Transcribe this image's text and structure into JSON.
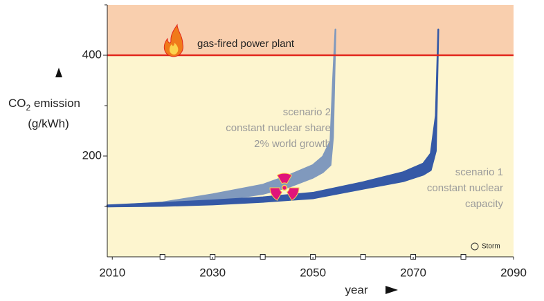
{
  "chart_data": {
    "type": "band",
    "ylabel": {
      "main": "CO",
      "sub": "2",
      "rest": " emission"
    },
    "yunit": "(g/kWh)",
    "xlabel": "year",
    "xlim": [
      2009,
      2090
    ],
    "ylim": [
      0,
      500
    ],
    "xticks": [
      2010,
      2030,
      2050,
      2070,
      2090
    ],
    "x_minor_ticks": [
      2020,
      2030,
      2040,
      2050,
      2060,
      2070,
      2080
    ],
    "yticks": [
      200,
      400
    ],
    "y_minor_ticks": [
      100,
      300,
      500
    ],
    "threshold": {
      "value": 400,
      "label": "gas-fired power plant",
      "color": "#e2261c",
      "above_color": "#f9cfae",
      "below_color": "#fdf5cf"
    },
    "series": [
      {
        "name": [
          "scenario 1",
          "constant nuclear",
          "capacity"
        ],
        "color": "#3559a6",
        "x": [
          2009,
          2020,
          2030,
          2040,
          2050,
          2060,
          2068,
          2072,
          2073.5,
          2074.5,
          2075
        ],
        "upper": [
          102,
          107,
          112,
          118,
          127,
          148,
          168,
          185,
          205,
          280,
          451
        ],
        "lower": [
          100,
          101,
          104,
          109,
          116,
          135,
          150,
          163,
          172,
          210,
          451
        ]
      },
      {
        "name": [
          "scenario 2",
          "constant nuclear share",
          "2% world growth"
        ],
        "color": "#8099bd",
        "x": [
          2009,
          2020,
          2030,
          2040,
          2045,
          2050,
          2052,
          2053.5,
          2054,
          2054.5
        ],
        "upper": [
          101,
          108,
          124,
          143,
          161,
          182,
          199,
          230,
          348,
          451
        ],
        "lower": [
          100,
          102,
          110,
          125,
          138,
          157,
          168,
          182,
          237,
          451
        ]
      }
    ],
    "credit": "Storm"
  }
}
